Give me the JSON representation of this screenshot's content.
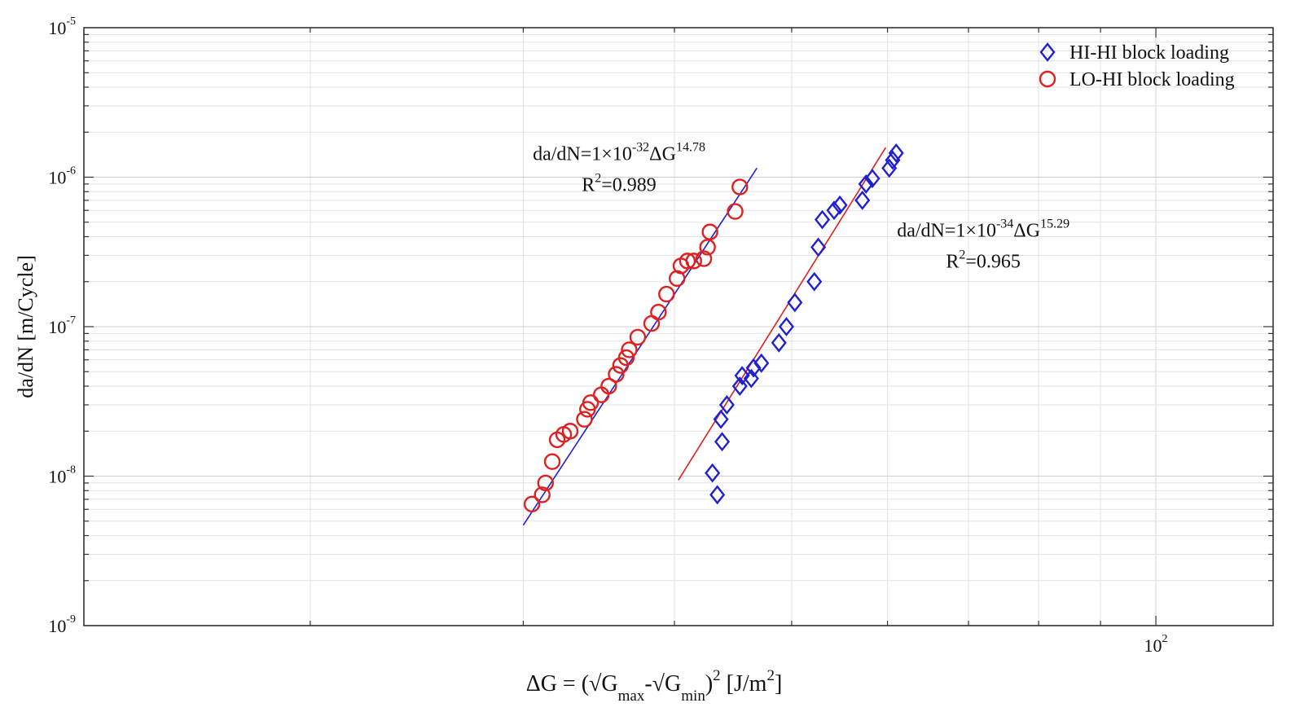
{
  "chart_data": {
    "type": "scatter",
    "x_scale": "log",
    "y_scale": "log",
    "xlim": [
      13,
      125
    ],
    "ylim": [
      1e-09,
      1e-05
    ],
    "grid": true,
    "legend_position": "top-right",
    "xlabel": {
      "prefix": "ΔG = (√G",
      "sub1": "max",
      "mid": "-√G",
      "sub2": "min",
      "close": ")",
      "sup": "2",
      "unit_open": " [J/m",
      "unit_sup": "2",
      "unit_close": "]"
    },
    "ylabel": "da/dN [m/Cycle]",
    "x_ticks": [
      {
        "value": 100,
        "base": "10",
        "exp": "2"
      }
    ],
    "y_ticks": [
      {
        "value": 1e-09,
        "base": "10",
        "exp": "-9"
      },
      {
        "value": 1e-08,
        "base": "10",
        "exp": "-8"
      },
      {
        "value": 1e-07,
        "base": "10",
        "exp": "-7"
      },
      {
        "value": 1e-06,
        "base": "10",
        "exp": "-6"
      },
      {
        "value": 1e-05,
        "base": "10",
        "exp": "-5"
      }
    ],
    "series": [
      {
        "name": "HI-HI block loading",
        "marker": "diamond",
        "color": "#1f1fd6",
        "points": [
          [
            43.0,
            1.05e-08
          ],
          [
            43.4,
            7.5e-09
          ],
          [
            43.8,
            1.7e-08
          ],
          [
            43.7,
            2.4e-08
          ],
          [
            44.2,
            3e-08
          ],
          [
            45.3,
            4e-08
          ],
          [
            45.5,
            4.7e-08
          ],
          [
            46.3,
            4.5e-08
          ],
          [
            46.5,
            5.3e-08
          ],
          [
            47.2,
            5.7e-08
          ],
          [
            48.8,
            7.8e-08
          ],
          [
            49.5,
            1e-07
          ],
          [
            50.3,
            1.45e-07
          ],
          [
            52.2,
            2e-07
          ],
          [
            52.6,
            3.4e-07
          ],
          [
            53.0,
            5.2e-07
          ],
          [
            54.2,
            6e-07
          ],
          [
            54.8,
            6.5e-07
          ],
          [
            57.2,
            7e-07
          ],
          [
            57.6,
            9e-07
          ],
          [
            58.3,
            9.8e-07
          ],
          [
            60.2,
            1.15e-06
          ],
          [
            60.6,
            1.3e-06
          ],
          [
            61.0,
            1.45e-06
          ]
        ],
        "fit": {
          "x": [
            40.3,
            59.8
          ],
          "y": [
            9.4e-09,
            1.58e-06
          ]
        }
      },
      {
        "name": "LO-HI block loading",
        "marker": "circle",
        "color": "#e02020",
        "points": [
          [
            30.5,
            6.5e-09
          ],
          [
            31.1,
            7.5e-09
          ],
          [
            31.3,
            9e-09
          ],
          [
            31.7,
            1.25e-08
          ],
          [
            32.0,
            1.75e-08
          ],
          [
            32.4,
            1.9e-08
          ],
          [
            32.8,
            2e-08
          ],
          [
            33.7,
            2.4e-08
          ],
          [
            33.9,
            2.8e-08
          ],
          [
            34.1,
            3.1e-08
          ],
          [
            34.8,
            3.5e-08
          ],
          [
            35.3,
            4e-08
          ],
          [
            35.8,
            4.8e-08
          ],
          [
            36.1,
            5.5e-08
          ],
          [
            36.5,
            6.2e-08
          ],
          [
            36.7,
            7e-08
          ],
          [
            37.3,
            8.5e-08
          ],
          [
            38.3,
            1.05e-07
          ],
          [
            38.8,
            1.25e-07
          ],
          [
            39.4,
            1.65e-07
          ],
          [
            40.2,
            2.1e-07
          ],
          [
            40.5,
            2.55e-07
          ],
          [
            41.0,
            2.75e-07
          ],
          [
            41.5,
            2.75e-07
          ],
          [
            42.3,
            2.85e-07
          ],
          [
            42.6,
            3.4e-07
          ],
          [
            42.8,
            4.3e-07
          ],
          [
            44.9,
            5.9e-07
          ],
          [
            45.3,
            8.6e-07
          ]
        ],
        "fit": {
          "x": [
            30.0,
            46.8
          ],
          "y": [
            4.7e-09,
            1.15e-06
          ]
        }
      }
    ],
    "annotations": [
      {
        "anchor_x": 36.0,
        "anchor_y": 1.3e-06,
        "line1": {
          "prefix": "da/dN=1×10",
          "exp1": "-32",
          "mid": "ΔG",
          "exp2": "14.78"
        },
        "line2": {
          "prefix": "R",
          "sup": "2",
          "suffix": "=0.989"
        }
      },
      {
        "anchor_x": 72.0,
        "anchor_y": 4e-07,
        "line1": {
          "prefix": "da/dN=1×10",
          "exp1": "-34",
          "mid": "ΔG",
          "exp2": "15.29"
        },
        "line2": {
          "prefix": "R",
          "sup": "2",
          "suffix": "=0.965"
        }
      }
    ]
  }
}
